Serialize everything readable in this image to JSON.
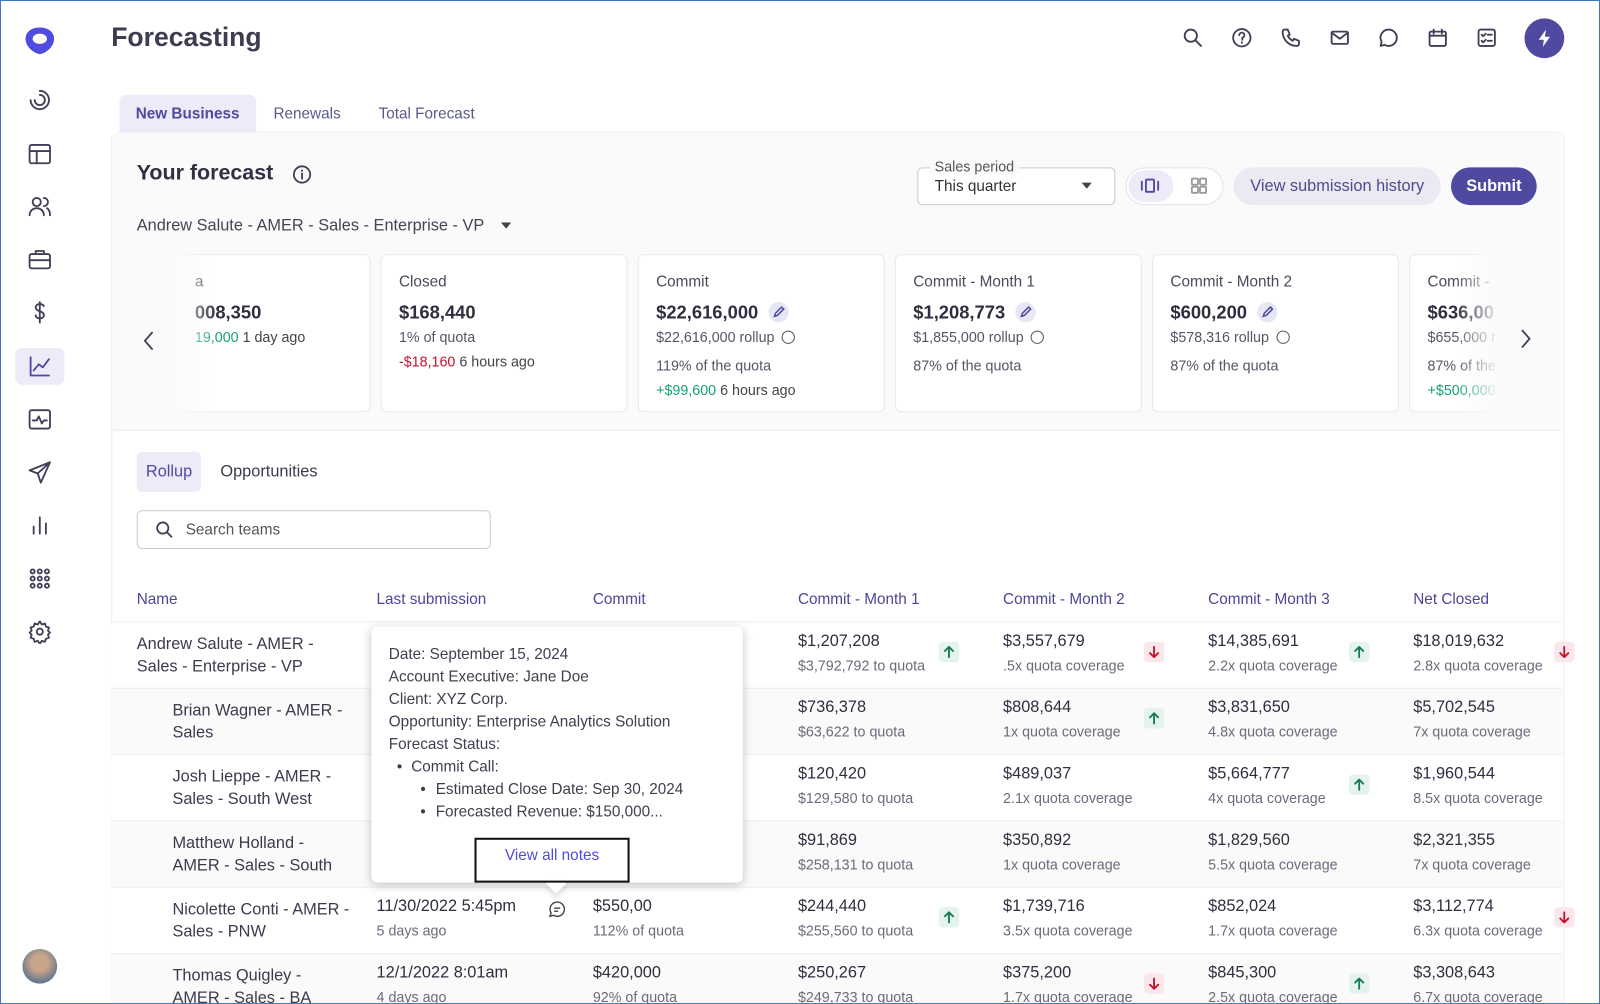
{
  "header": {
    "title": "Forecasting"
  },
  "tabs": [
    "New Business",
    "Renewals",
    "Total Forecast"
  ],
  "forecast": {
    "title": "Your forecast",
    "sales_period_label": "Sales period",
    "sales_period": "This quarter",
    "view_history": "View submission history",
    "submit": "Submit",
    "team": "Andrew Salute - AMER - Sales - Enterprise - VP"
  },
  "cards": [
    {
      "label": "a",
      "value": "008,350",
      "change": "19,000",
      "change_color": "#17a06e",
      "time": "1 day ago"
    },
    {
      "label": "Closed",
      "value": "$168,440",
      "quota": "1% of quota",
      "change": "-$18,160",
      "change_color": "#c8102e",
      "time": "6 hours ago"
    },
    {
      "label": "Commit",
      "value": "$22,616,000",
      "editable": true,
      "rollup": "$22,616,000 rollup",
      "quota": "119% of the quota",
      "change": "+$99,600",
      "change_color": "#17a06e",
      "time": "6 hours ago"
    },
    {
      "label": "Commit - Month 1",
      "value": "$1,208,773",
      "editable": true,
      "rollup": "$1,855,000 rollup",
      "quota": "87% of the quota"
    },
    {
      "label": "Commit - Month 2",
      "value": "$600,200",
      "editable": true,
      "rollup": "$578,316 rollup",
      "quota": "87% of the quota"
    },
    {
      "label": "Commit - ",
      "value": "$636,00",
      "rollup": "$655,000 r",
      "quota": "87% of the",
      "change": "+$500,000",
      "change_color": "#17a06e"
    }
  ],
  "subtabs": [
    "Rollup",
    "Opportunities"
  ],
  "search_placeholder": "Search teams",
  "table": {
    "columns": [
      "Name",
      "Last submission",
      "Commit",
      "Commit - Month 1",
      "Commit - Month 2",
      "Commit - Month 3",
      "Net Closed"
    ],
    "rows": [
      {
        "name": "Andrew Salute - AMER - Sales - Enterprise - VP",
        "cells": [
          null,
          null,
          {
            "value": "$1,207,208",
            "sub": "$3,792,792 to quota",
            "trend": "up"
          },
          {
            "value": "$3,557,679",
            "sub": ".5x quota coverage",
            "trend": "down"
          },
          {
            "value": "$14,385,691",
            "sub": "2.2x quota coverage",
            "trend": "up"
          },
          {
            "value": "$18,019,632",
            "sub": "2.8x quota coverage",
            "trend": "down"
          }
        ]
      },
      {
        "name": "Brian Wagner - AMER - Sales",
        "child": true,
        "cells": [
          null,
          null,
          {
            "value": "$736,378",
            "sub": "$63,622 to quota"
          },
          {
            "value": "$808,644",
            "sub": "1x quota coverage",
            "trend": "up"
          },
          {
            "value": "$3,831,650",
            "sub": "4.8x quota coverage"
          },
          {
            "value": "$5,702,545",
            "sub": "7x quota coverage"
          }
        ]
      },
      {
        "name": "Josh Lieppe - AMER - Sales - South West",
        "child": true,
        "cells": [
          null,
          null,
          {
            "value": "$120,420",
            "sub": "$129,580 to quota"
          },
          {
            "value": "$489,037",
            "sub": "2.1x quota coverage"
          },
          {
            "value": "$5,664,777",
            "sub": "4x quota coverage",
            "trend": "up"
          },
          {
            "value": "$1,960,544",
            "sub": "8.5x quota coverage"
          }
        ]
      },
      {
        "name": "Matthew Holland - AMER - Sales - South",
        "child": true,
        "cells": [
          null,
          null,
          {
            "value": "$91,869",
            "sub": "$258,131 to quota"
          },
          {
            "value": "$350,892",
            "sub": "1x quota coverage"
          },
          {
            "value": "$1,829,560",
            "sub": "5.5x quota coverage"
          },
          {
            "value": "$2,321,355",
            "sub": "7x quota coverage"
          }
        ]
      },
      {
        "name": "Nicolette Conti - AMER - Sales - PNW",
        "child": true,
        "has_note": true,
        "cells": [
          {
            "value": "11/30/2022 5:45pm",
            "sub": "5 days ago"
          },
          {
            "value": "$550,00",
            "sub": "112% of quota"
          },
          {
            "value": "$244,440",
            "sub": "$255,560 to quota",
            "trend": "up"
          },
          {
            "value": "$1,739,716",
            "sub": "3.5x quota coverage"
          },
          {
            "value": "$852,024",
            "sub": "1.7x quota coverage"
          },
          {
            "value": "$3,112,774",
            "sub": "6.3x quota coverage",
            "trend": "down"
          }
        ]
      },
      {
        "name": "Thomas Quigley - AMER - Sales - BA",
        "child": true,
        "cells": [
          {
            "value": "12/1/2022 8:01am",
            "sub": "4 days ago"
          },
          {
            "value": "$420,000",
            "sub": "92% of quota"
          },
          {
            "value": "$250,267",
            "sub": "$249,733 to quota"
          },
          {
            "value": "$375,200",
            "sub": "1.7x quota coverage",
            "trend": "down"
          },
          {
            "value": "$845,300",
            "sub": "2.5x quota coverage",
            "trend": "up"
          },
          {
            "value": "$3,308,643",
            "sub": "6.7x quota coverage"
          }
        ]
      }
    ]
  },
  "tooltip": {
    "lines": [
      "Date: September 15, 2024",
      "Account Executive: Jane Doe",
      "Client: XYZ Corp.",
      "Opportunity: Enterprise Analytics Solution",
      "Forecast Status:"
    ],
    "bullet": "Commit Call:",
    "sub_bullets": [
      "Estimated Close Date: Sep 30, 2024",
      "Forecasted Revenue: $150,000..."
    ],
    "link": "View all notes"
  }
}
